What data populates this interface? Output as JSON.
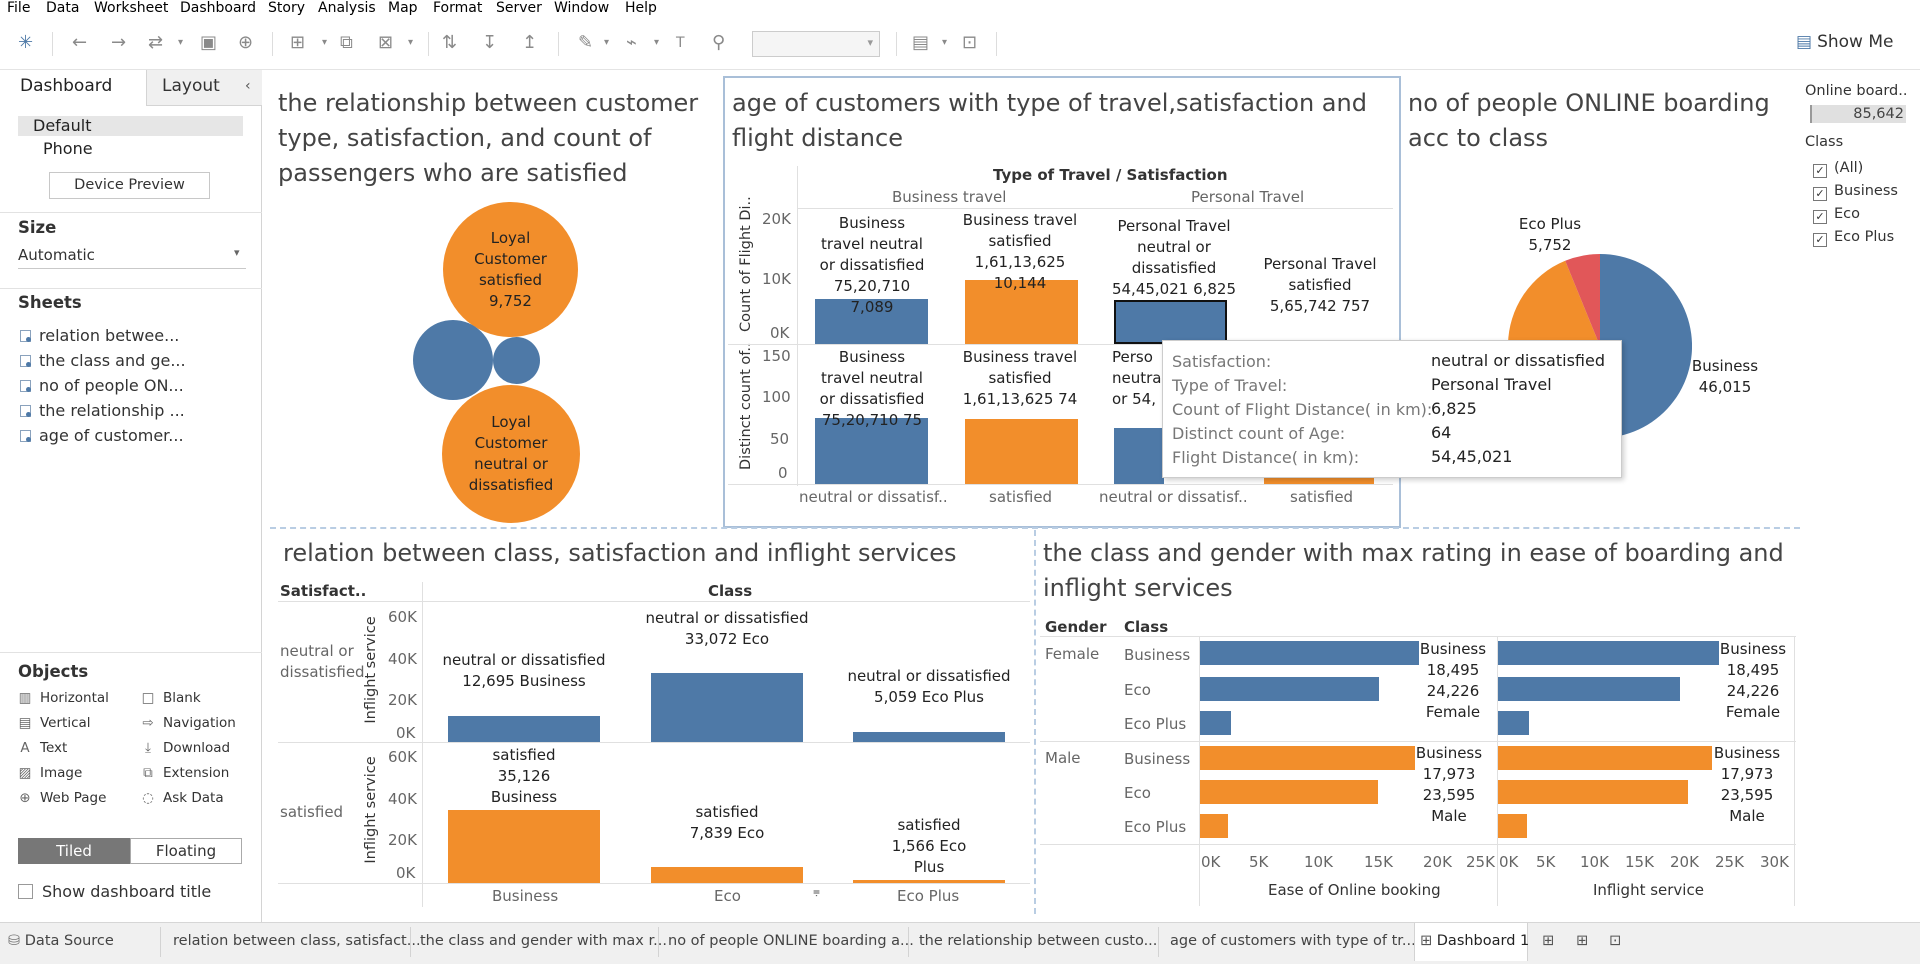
{
  "menu": [
    "File",
    "Data",
    "Worksheet",
    "Dashboard",
    "Story",
    "Analysis",
    "Map",
    "Format",
    "Server",
    "Window",
    "Help"
  ],
  "toolbar": {
    "show_me": "Show Me"
  },
  "left_panel": {
    "tab_dashboard": "Dashboard",
    "tab_layout": "Layout",
    "device_default": "Default",
    "device_phone": "Phone",
    "device_preview": "Device Preview",
    "size_header": "Size",
    "size_value": "Automatic",
    "sheets_header": "Sheets",
    "sheets": [
      "relation betwee...",
      "the class and ge...",
      "no of people ON...",
      "the relationship ...",
      "age of customer..."
    ],
    "objects_header": "Objects",
    "objects": [
      "Horizontal",
      "Vertical",
      "Text",
      "Image",
      "Web Page",
      "Blank",
      "Navigation",
      "Download",
      "Extension",
      "Ask Data"
    ],
    "tiled": "Tiled",
    "floating": "Floating",
    "show_title": "Show dashboard title"
  },
  "dashboard": {
    "t1": "the relationship between customer type, satisfaction, and count of passengers who are satisfied",
    "bubble1": "Loyal Customer satisfied 9,752",
    "bubble2": "Loyal Customer neutral or dissatisfied",
    "t2": "age of customers with type of travel,satisfaction and flight distance",
    "t2_header": "Type of Travel / Satisfaction",
    "t2_business": "Business travel",
    "t2_personal": "Personal Travel",
    "t2_axis1": "Count of Flight Di..",
    "t2_axis2": "Distinct count of..",
    "t2_ticks1": [
      "20K",
      "10K",
      "0K"
    ],
    "t2_ticks2": [
      "150",
      "100",
      "50",
      "0"
    ],
    "t2_bottom": [
      "neutral or dissatisf..",
      "satisfied",
      "neutral or dissatisf..",
      "satisfied"
    ],
    "t2_labels_top": [
      "Business travel neutral or dissatisfied 75,20,710 7,089",
      "Business travel satisfied 1,61,13,625 10,144",
      "Personal Travel neutral or dissatisfied 54,45,021 6,825",
      "Personal Travel satisfied 5,65,742 757"
    ],
    "t2_labels_bot": [
      "Business travel neutral or dissatisfied 75,20,710 75",
      "Business travel satisfied 1,61,13,625 74",
      "Perso neutral or 54,"
    ],
    "t3": "no of people ONLINE boarding acc to class",
    "pie_eco_plus": "Eco Plus 5,752",
    "pie_business": "Business 46,015",
    "legend_online_title": "Online board..",
    "legend_online_value": "85,642",
    "legend_class_title": "Class",
    "legend_class_items": [
      "(All)",
      "Business",
      "Eco",
      "Eco Plus"
    ],
    "t4": "relation between class, satisfaction and inflight services",
    "t4_satisfact": "Satisfact..",
    "t4_class": "Class",
    "t4_row_neutral": "neutral or dissatisfied",
    "t4_row_satisfied": "satisfied",
    "t4_axis": "Inflight service",
    "t4_ticks": [
      "60K",
      "40K",
      "20K",
      "0K"
    ],
    "t4_cols": [
      "Business",
      "Eco",
      "Eco Plus"
    ],
    "t4_top_labels": [
      "neutral or dissatisfied 12,695 Business",
      "neutral or dissatisfied 33,072 Eco",
      "neutral or dissatisfied 5,059 Eco Plus"
    ],
    "t4_bot_labels": [
      "satisfied 35,126 Business",
      "satisfied 7,839 Eco",
      "satisfied 1,566 Eco Plus"
    ],
    "t5": "the class and gender with max rating in ease of boarding and inflight services",
    "t5_gender": "Gender",
    "t5_class": "Class",
    "t5_female": "Female",
    "t5_male": "Male",
    "t5_classes": [
      "Business",
      "Eco",
      "Eco Plus"
    ],
    "t5_label_female": "Business 18,495 24,226 Female",
    "t5_label_male": "Business 17,973 23,595 Male",
    "t5_ticks_a": [
      "0K",
      "5K",
      "10K",
      "15K",
      "20K",
      "25K"
    ],
    "t5_ticks_b": [
      "0K",
      "5K",
      "10K",
      "15K",
      "20K",
      "25K",
      "30K"
    ],
    "t5_axis_a": "Ease of Online booking",
    "t5_axis_b": "Inflight service",
    "tooltip": {
      "k1": "Satisfaction:",
      "v1": "neutral or dissatisfied",
      "k2": "Type of Travel:",
      "v2": "Personal Travel",
      "k3": "Count of Flight Distance( in km):",
      "v3": "6,825",
      "k4": "Distinct count of Age:",
      "v4": "64",
      "k5": "Flight Distance( in km):",
      "v5": "54,45,021"
    }
  },
  "bottom_tabs": [
    "Data Source",
    "relation between class, satisfact...",
    "the class and gender with max r...",
    "no of people ONLINE boarding a...",
    "the relationship between custo...",
    "age of customers with type of tr...",
    "Dashboard 1"
  ],
  "colors": {
    "blue": "#4e79a7",
    "orange": "#f28e2b",
    "red": "#e15759"
  }
}
